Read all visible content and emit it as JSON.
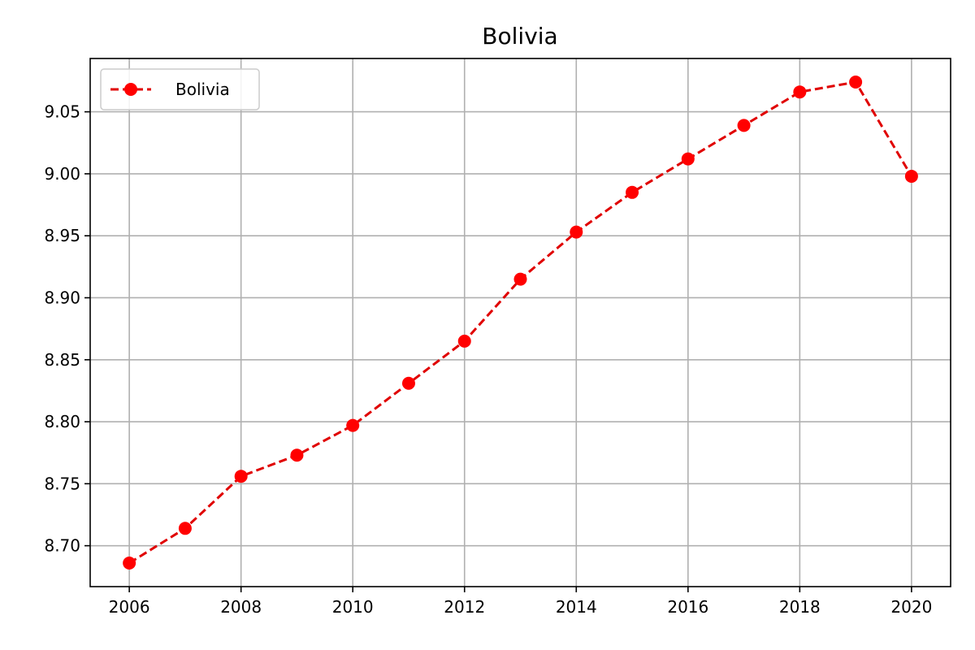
{
  "chart_data": {
    "type": "line",
    "title": "Bolivia",
    "xlabel": "",
    "ylabel": "",
    "x": [
      2006,
      2007,
      2008,
      2009,
      2010,
      2011,
      2012,
      2013,
      2014,
      2015,
      2016,
      2017,
      2018,
      2019,
      2020
    ],
    "series": [
      {
        "name": "Bolivia",
        "color": "#e00000",
        "marker_color": "#ff0000",
        "line_style": "dashed",
        "marker": "circle",
        "values": [
          8.686,
          8.714,
          8.756,
          8.773,
          8.797,
          8.831,
          8.865,
          8.915,
          8.953,
          8.985,
          9.012,
          9.039,
          9.066,
          9.074,
          8.998
        ]
      }
    ],
    "xlim": [
      2005.3,
      2020.7
    ],
    "ylim": [
      8.667,
      9.093
    ],
    "x_ticks": [
      2006,
      2008,
      2010,
      2012,
      2014,
      2016,
      2018,
      2020
    ],
    "x_tick_labels": [
      "2006",
      "2008",
      "2010",
      "2012",
      "2014",
      "2016",
      "2018",
      "2020"
    ],
    "y_ticks": [
      8.7,
      8.75,
      8.8,
      8.85,
      8.9,
      8.95,
      9.0,
      9.05
    ],
    "y_tick_labels": [
      "8.70",
      "8.75",
      "8.80",
      "8.85",
      "8.90",
      "8.95",
      "9.00",
      "9.05"
    ],
    "grid": true,
    "legend": {
      "position": "top-left",
      "entries": [
        "Bolivia"
      ]
    }
  }
}
